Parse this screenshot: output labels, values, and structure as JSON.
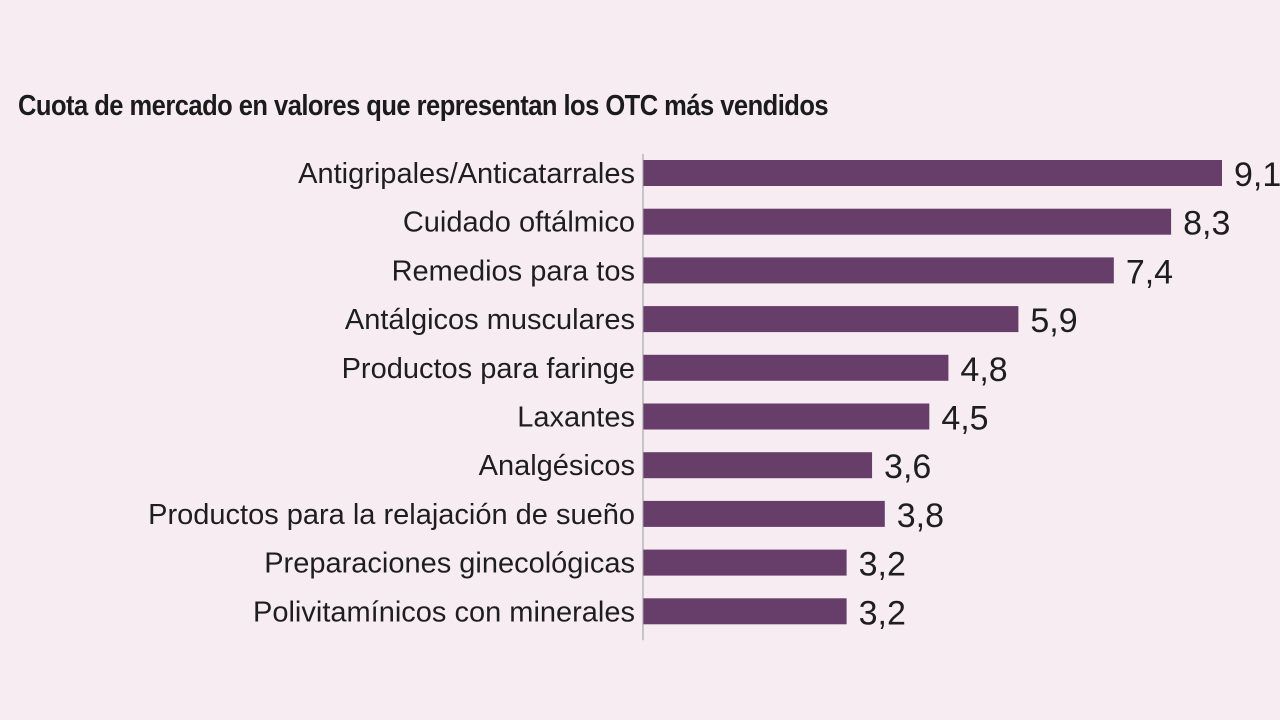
{
  "chart_data": {
    "type": "bar",
    "orientation": "horizontal",
    "title": "Cuota de mercado en valores que representan los OTC más vendidos",
    "categories": [
      "Antigripales/Anticatarrales",
      "Cuidado oftálmico",
      "Remedios para tos",
      "Antálgicos musculares",
      "Productos para faringe",
      "Laxantes",
      "Analgésicos",
      "Productos para la relajación de sueño",
      "Preparaciones ginecológicas",
      "Polivitamínicos con minerales"
    ],
    "values": [
      9.1,
      8.3,
      7.4,
      5.9,
      4.8,
      4.5,
      3.6,
      3.8,
      3.2,
      3.2
    ],
    "value_labels": [
      "9,1",
      "8,3",
      "7,4",
      "5,9",
      "4,8",
      "4,5",
      "3,6",
      "3,8",
      "3,2",
      "3,2"
    ],
    "xlim": [
      0,
      9.1
    ],
    "grid": false,
    "legend": "none",
    "colors": {
      "bar": "#673e6a",
      "background": "#f6ecf1",
      "axis": "#9a9a9a",
      "text": "#1e1e1e"
    }
  }
}
